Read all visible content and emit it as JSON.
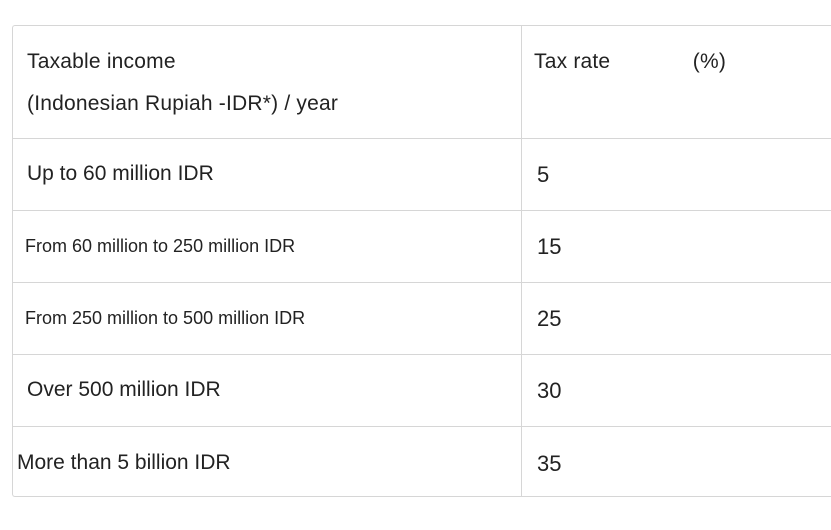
{
  "table": {
    "header": {
      "income_line1": "Taxable income",
      "income_line2": "(Indonesian Rupiah -IDR*) / year",
      "rate_label": "Tax rate",
      "rate_unit": "(%)"
    },
    "rows": [
      {
        "income": "Up to 60 million IDR",
        "rate": "5"
      },
      {
        "income": "From 60 million to 250 million IDR",
        "rate": "15"
      },
      {
        "income": "From 250 million to 500 million IDR",
        "rate": "25"
      },
      {
        "income": "Over 500 million IDR",
        "rate": "30"
      },
      {
        "income": "More than 5 billion IDR",
        "rate": "35"
      }
    ]
  }
}
